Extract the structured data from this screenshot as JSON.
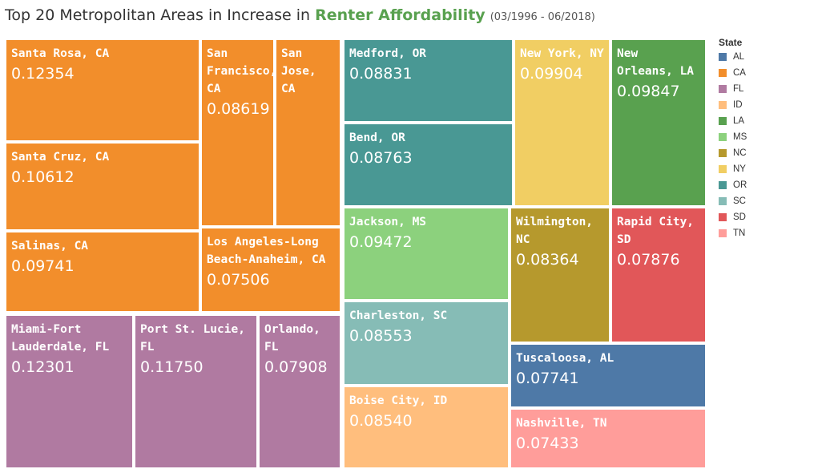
{
  "title": {
    "main": "Top 20 Metropolitan Areas in Increase in ",
    "highlight": "Renter Affordability",
    "subtitle": "(03/1996 - 06/2018)"
  },
  "legend": {
    "title": "State",
    "items": [
      {
        "label": "AL",
        "color": "#4e79a7"
      },
      {
        "label": "CA",
        "color": "#f28e2b"
      },
      {
        "label": "FL",
        "color": "#b07aa1"
      },
      {
        "label": "ID",
        "color": "#ffbe7d"
      },
      {
        "label": "LA",
        "color": "#59a14f"
      },
      {
        "label": "MS",
        "color": "#8cd17d"
      },
      {
        "label": "NC",
        "color": "#b6992d"
      },
      {
        "label": "NY",
        "color": "#f1ce63"
      },
      {
        "label": "OR",
        "color": "#499894"
      },
      {
        "label": "SC",
        "color": "#86bcb6"
      },
      {
        "label": "SD",
        "color": "#e15759"
      },
      {
        "label": "TN",
        "color": "#ff9d9a"
      }
    ]
  },
  "chart_data": {
    "type": "treemap",
    "color_by": "State",
    "items": [
      {
        "label": "Santa Rosa, CA",
        "state": "CA",
        "value": "0.12354"
      },
      {
        "label": "Santa Cruz, CA",
        "state": "CA",
        "value": "0.10612"
      },
      {
        "label": "Salinas, CA",
        "state": "CA",
        "value": "0.09741"
      },
      {
        "label": "San Francisco, CA",
        "state": "CA",
        "value": "0.08619"
      },
      {
        "label": "San Jose, CA",
        "state": "CA",
        "value": ""
      },
      {
        "label": "Los Angeles-Long Beach-Anaheim, CA",
        "state": "CA",
        "value": "0.07506"
      },
      {
        "label": "Miami-Fort Lauderdale, FL",
        "state": "FL",
        "value": "0.12301"
      },
      {
        "label": "Port St. Lucie, FL",
        "state": "FL",
        "value": "0.11750"
      },
      {
        "label": "Orlando, FL",
        "state": "FL",
        "value": "0.07908"
      },
      {
        "label": "Medford, OR",
        "state": "OR",
        "value": "0.08831"
      },
      {
        "label": "Bend, OR",
        "state": "OR",
        "value": "0.08763"
      },
      {
        "label": "New York, NY",
        "state": "NY",
        "value": "0.09904"
      },
      {
        "label": "New Orleans, LA",
        "state": "LA",
        "value": "0.09847"
      },
      {
        "label": "Jackson, MS",
        "state": "MS",
        "value": "0.09472"
      },
      {
        "label": "Charleston, SC",
        "state": "SC",
        "value": "0.08553"
      },
      {
        "label": "Boise City, ID",
        "state": "ID",
        "value": "0.08540"
      },
      {
        "label": "Wilmington, NC",
        "state": "NC",
        "value": "0.08364"
      },
      {
        "label": "Rapid City, SD",
        "state": "SD",
        "value": "0.07876"
      },
      {
        "label": "Tuscaloosa, AL",
        "state": "AL",
        "value": "0.07741"
      },
      {
        "label": "Nashville, TN",
        "state": "TN",
        "value": "0.07433"
      }
    ]
  }
}
